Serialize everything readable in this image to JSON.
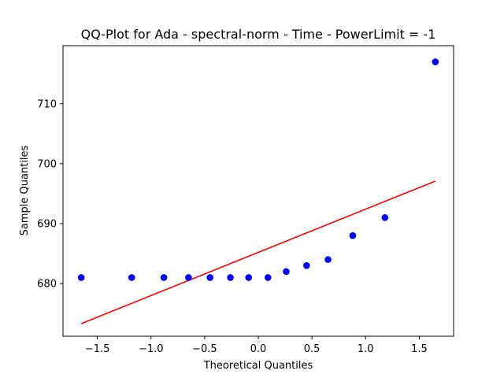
{
  "chart_data": {
    "type": "scatter",
    "title": "QQ-Plot for Ada - spectral-norm - Time - PowerLimit = -1",
    "xlabel": "Theoretical Quantiles",
    "ylabel": "Sample Quantiles",
    "xlim": [
      -1.82,
      1.82
    ],
    "ylim": [
      671.2,
      719.7
    ],
    "x_ticks": [
      -1.5,
      -1.0,
      -0.5,
      0.0,
      0.5,
      1.0,
      1.5
    ],
    "x_tick_labels": [
      "−1.5",
      "−1.0",
      "−0.5",
      "0.0",
      "0.5",
      "1.0",
      "1.5"
    ],
    "y_ticks": [
      680,
      690,
      700,
      710
    ],
    "y_tick_labels": [
      "680",
      "690",
      "700",
      "710"
    ],
    "grid": false,
    "series": [
      {
        "name": "sample quantiles",
        "kind": "points",
        "color": "#0000ff",
        "x": [
          -1.65,
          -1.18,
          -0.88,
          -0.65,
          -0.45,
          -0.26,
          -0.09,
          0.09,
          0.26,
          0.45,
          0.65,
          0.88,
          1.18,
          1.65
        ],
        "y": [
          681,
          681,
          681,
          681,
          681,
          681,
          681,
          681,
          682,
          683,
          684,
          688,
          691,
          717
        ]
      },
      {
        "name": "reference line",
        "kind": "line",
        "color": "#ff0000",
        "x": [
          -1.65,
          1.65
        ],
        "y": [
          673.3,
          697.1
        ]
      }
    ]
  }
}
